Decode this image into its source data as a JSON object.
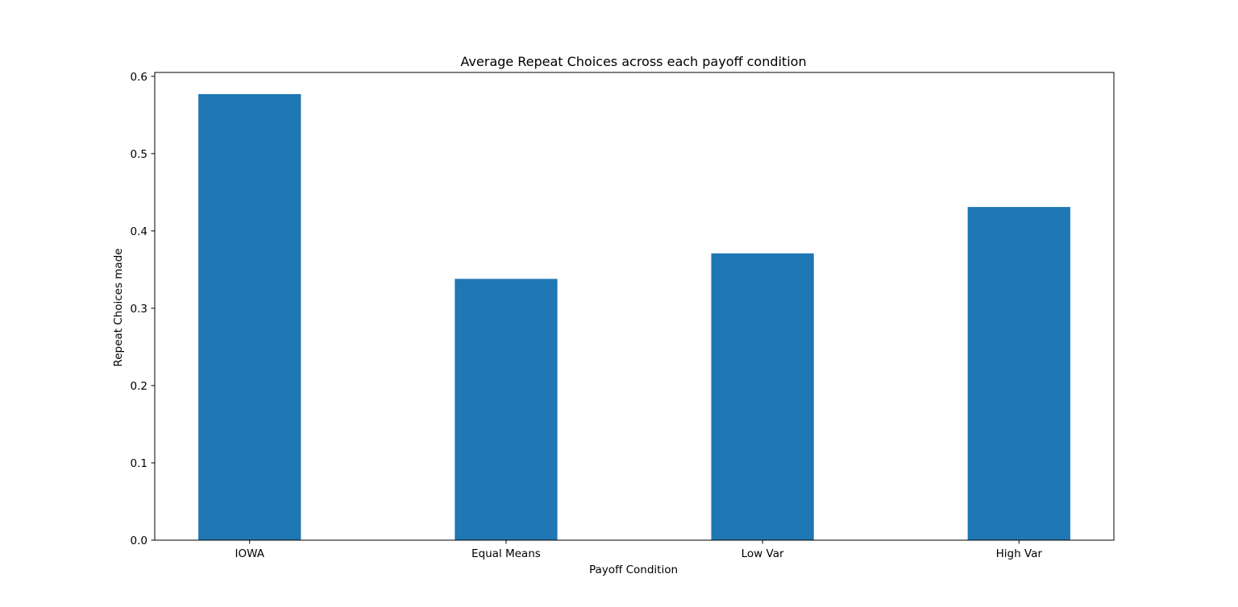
{
  "chart_data": {
    "type": "bar",
    "title": "Average Repeat Choices across each payoff condition",
    "xlabel": "Payoff Condition",
    "ylabel": "Repeat Choices made",
    "categories": [
      "IOWA",
      "Equal Means",
      "Low Var",
      "High Var"
    ],
    "values": [
      0.577,
      0.338,
      0.371,
      0.431
    ],
    "ylim": [
      0,
      0.605
    ],
    "yticks": [
      "0.0",
      "0.1",
      "0.2",
      "0.3",
      "0.4",
      "0.5",
      "0.6"
    ],
    "grid": false,
    "legend": "none",
    "bar_color": "#1f77b4"
  }
}
